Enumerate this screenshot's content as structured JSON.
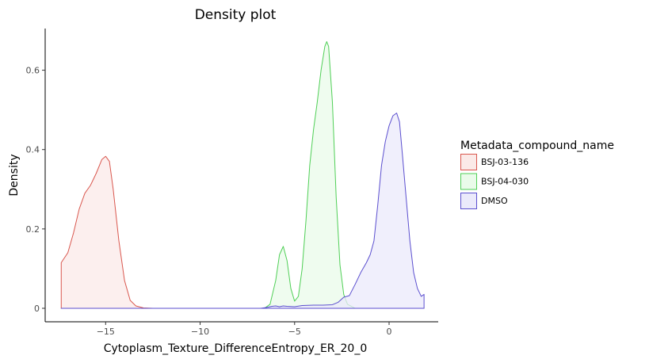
{
  "chart_data": {
    "type": "area",
    "title": "Density plot",
    "xlabel": "Cytoplasm_Texture_DifferenceEntropy_ER_20_0",
    "ylabel": "Density",
    "xlim": [
      -18.2,
      2.6
    ],
    "ylim": [
      -0.034,
      0.705
    ],
    "x_ticks": [
      -15,
      -10,
      -5,
      0
    ],
    "x_tick_labels": [
      "−15",
      "−10",
      "−5",
      "0"
    ],
    "y_ticks": [
      0,
      0.2,
      0.4,
      0.6
    ],
    "y_tick_labels": [
      "0",
      "0.2",
      "0.4",
      "0.6"
    ],
    "grid": false,
    "legend": {
      "title": "Metadata_compound_name",
      "position": "right"
    },
    "series": [
      {
        "name": "BSJ-03-136",
        "line_color": "#d9574e",
        "fill_color": "#fbeae8",
        "points": [
          [
            -17.35,
            0.115
          ],
          [
            -17.0,
            0.14
          ],
          [
            -16.7,
            0.19
          ],
          [
            -16.4,
            0.25
          ],
          [
            -16.1,
            0.29
          ],
          [
            -15.8,
            0.31
          ],
          [
            -15.5,
            0.34
          ],
          [
            -15.2,
            0.375
          ],
          [
            -15.0,
            0.383
          ],
          [
            -14.8,
            0.37
          ],
          [
            -14.6,
            0.3
          ],
          [
            -14.3,
            0.17
          ],
          [
            -14.0,
            0.07
          ],
          [
            -13.7,
            0.02
          ],
          [
            -13.4,
            0.006
          ],
          [
            -13.0,
            0.001
          ],
          [
            -12.5,
            0.0
          ],
          [
            1.85,
            0.0
          ]
        ]
      },
      {
        "name": "BSJ-04-030",
        "line_color": "#4fcf56",
        "fill_color": "#eafbea",
        "points": [
          [
            -17.35,
            0.0
          ],
          [
            -6.6,
            0.0
          ],
          [
            -6.3,
            0.01
          ],
          [
            -6.0,
            0.07
          ],
          [
            -5.8,
            0.135
          ],
          [
            -5.6,
            0.156
          ],
          [
            -5.4,
            0.12
          ],
          [
            -5.2,
            0.05
          ],
          [
            -5.0,
            0.018
          ],
          [
            -4.8,
            0.03
          ],
          [
            -4.6,
            0.1
          ],
          [
            -4.4,
            0.22
          ],
          [
            -4.2,
            0.36
          ],
          [
            -4.0,
            0.45
          ],
          [
            -3.8,
            0.52
          ],
          [
            -3.6,
            0.6
          ],
          [
            -3.4,
            0.66
          ],
          [
            -3.3,
            0.672
          ],
          [
            -3.2,
            0.66
          ],
          [
            -3.0,
            0.52
          ],
          [
            -2.8,
            0.28
          ],
          [
            -2.6,
            0.11
          ],
          [
            -2.4,
            0.035
          ],
          [
            -2.2,
            0.01
          ],
          [
            -1.8,
            0.0
          ],
          [
            1.85,
            0.0
          ]
        ]
      },
      {
        "name": "DMSO",
        "line_color": "#5b4fcf",
        "fill_color": "#ebeafb",
        "points": [
          [
            -17.35,
            0.0
          ],
          [
            -6.8,
            0.0
          ],
          [
            -6.5,
            0.002
          ],
          [
            -6.2,
            0.005
          ],
          [
            -6.0,
            0.006
          ],
          [
            -5.8,
            0.004
          ],
          [
            -5.6,
            0.006
          ],
          [
            -5.4,
            0.005
          ],
          [
            -5.0,
            0.004
          ],
          [
            -4.6,
            0.007
          ],
          [
            -4.0,
            0.008
          ],
          [
            -3.5,
            0.008
          ],
          [
            -3.0,
            0.009
          ],
          [
            -2.7,
            0.015
          ],
          [
            -2.4,
            0.028
          ],
          [
            -2.1,
            0.032
          ],
          [
            -1.8,
            0.06
          ],
          [
            -1.5,
            0.09
          ],
          [
            -1.2,
            0.115
          ],
          [
            -1.0,
            0.135
          ],
          [
            -0.8,
            0.17
          ],
          [
            -0.6,
            0.26
          ],
          [
            -0.4,
            0.36
          ],
          [
            -0.2,
            0.42
          ],
          [
            0.0,
            0.46
          ],
          [
            0.2,
            0.485
          ],
          [
            0.4,
            0.492
          ],
          [
            0.55,
            0.47
          ],
          [
            0.7,
            0.39
          ],
          [
            0.9,
            0.28
          ],
          [
            1.1,
            0.17
          ],
          [
            1.3,
            0.09
          ],
          [
            1.5,
            0.05
          ],
          [
            1.7,
            0.03
          ],
          [
            1.85,
            0.035
          ],
          [
            1.85,
            0.0
          ]
        ]
      }
    ]
  }
}
